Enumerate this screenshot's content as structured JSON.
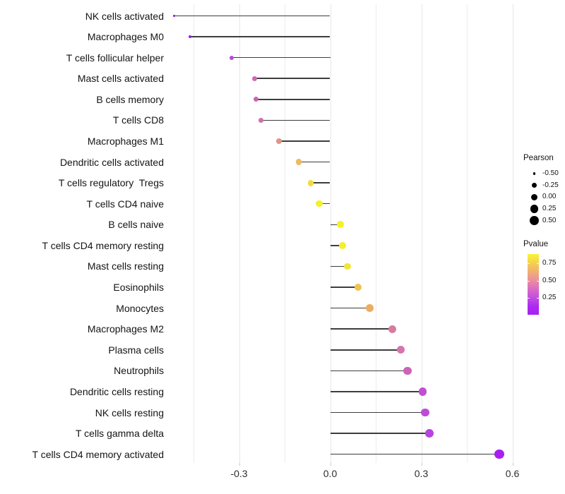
{
  "chart_data": {
    "type": "lollipop",
    "orientation": "horizontal",
    "title": "",
    "xlabel": "",
    "ylabel": "",
    "x_axis": {
      "range": [
        -0.52,
        0.62
      ],
      "ticks": [
        {
          "label": "-0.3",
          "value": -0.3
        },
        {
          "label": "0.0",
          "value": 0.0
        },
        {
          "label": "0.3",
          "value": 0.3
        },
        {
          "label": "0.6",
          "value": 0.6
        }
      ],
      "minor_gridlines": [
        -0.45,
        -0.15,
        0.15,
        0.45
      ],
      "baseline_value": 0.0
    },
    "points": [
      {
        "label": "NK cells activated",
        "pearson": -0.515,
        "pvalue_est": 0.01,
        "color": "#7a1dc4"
      },
      {
        "label": "Macrophages M0",
        "pearson": -0.462,
        "pvalue_est": 0.04,
        "color": "#8e24d8"
      },
      {
        "label": "T cells follicular helper",
        "pearson": -0.325,
        "pvalue_est": 0.15,
        "color": "#b44cd8"
      },
      {
        "label": "Mast cells activated",
        "pearson": -0.248,
        "pvalue_est": 0.28,
        "color": "#cc68b4"
      },
      {
        "label": "B cells memory",
        "pearson": -0.244,
        "pvalue_est": 0.27,
        "color": "#c964b6"
      },
      {
        "label": "T cells CD8",
        "pearson": -0.228,
        "pvalue_est": 0.33,
        "color": "#d16fa8"
      },
      {
        "label": "Macrophages M1",
        "pearson": -0.168,
        "pvalue_est": 0.47,
        "color": "#de9486"
      },
      {
        "label": "Dendritic cells activated",
        "pearson": -0.104,
        "pvalue_est": 0.64,
        "color": "#edba5f"
      },
      {
        "label": "T cells regulatory  Tregs",
        "pearson": -0.064,
        "pvalue_est": 0.78,
        "color": "#f2dc3c"
      },
      {
        "label": "T cells CD4 naive",
        "pearson": -0.036,
        "pvalue_est": 0.87,
        "color": "#f6f025"
      },
      {
        "label": "B cells naive",
        "pearson": 0.034,
        "pvalue_est": 0.87,
        "color": "#f6f125"
      },
      {
        "label": "T cells CD4 memory resting",
        "pearson": 0.04,
        "pvalue_est": 0.85,
        "color": "#f5ee2a"
      },
      {
        "label": "Mast cells resting",
        "pearson": 0.056,
        "pvalue_est": 0.8,
        "color": "#f3e438"
      },
      {
        "label": "Eosinophils",
        "pearson": 0.092,
        "pvalue_est": 0.67,
        "color": "#efc350"
      },
      {
        "label": "Monocytes",
        "pearson": 0.13,
        "pvalue_est": 0.57,
        "color": "#ebad61"
      },
      {
        "label": "Macrophages M2",
        "pearson": 0.205,
        "pvalue_est": 0.4,
        "color": "#d67c9f"
      },
      {
        "label": "Plasma cells",
        "pearson": 0.232,
        "pvalue_est": 0.36,
        "color": "#d675ac"
      },
      {
        "label": "Neutrophils",
        "pearson": 0.255,
        "pvalue_est": 0.29,
        "color": "#cc63b7"
      },
      {
        "label": "Dendritic cells resting",
        "pearson": 0.305,
        "pvalue_est": 0.2,
        "color": "#c14fd2"
      },
      {
        "label": "NK cells resting",
        "pearson": 0.313,
        "pvalue_est": 0.18,
        "color": "#be4ad8"
      },
      {
        "label": "T cells gamma delta",
        "pearson": 0.326,
        "pvalue_est": 0.15,
        "color": "#ba42e0"
      },
      {
        "label": "T cells CD4 memory activated",
        "pearson": 0.557,
        "pvalue_est": 0.02,
        "color": "#a81ef0"
      }
    ],
    "legend_size": {
      "title": "Pearson",
      "entries": [
        {
          "label": "-0.50",
          "value": -0.5
        },
        {
          "label": "-0.25",
          "value": -0.25
        },
        {
          "label": "0.00",
          "value": 0.0
        },
        {
          "label": "0.25",
          "value": 0.25
        },
        {
          "label": "0.50",
          "value": 0.5
        }
      ],
      "dot_color": "#000000"
    },
    "legend_color": {
      "title": "Pvalue",
      "tick_labels": [
        {
          "label": "0.75",
          "value": 0.75
        },
        {
          "label": "0.50",
          "value": 0.5
        },
        {
          "label": "0.25",
          "value": 0.25
        }
      ],
      "value_range_bottom_to_top": [
        0.02,
        0.88
      ],
      "gradient_top_to_bottom": [
        "#f9f435",
        "#f5d24f",
        "#f1af72",
        "#ea8f9c",
        "#dc6cc4",
        "#c44fde",
        "#ac2bf0",
        "#a81ff2"
      ]
    },
    "styles": {
      "stem_color": "#3d3d3d",
      "gridline_major_color": "#e7e7e7",
      "gridline_minor_color": "#ededed",
      "background": "#ffffff",
      "grid": "vertical-only",
      "legend_position": "right"
    }
  }
}
